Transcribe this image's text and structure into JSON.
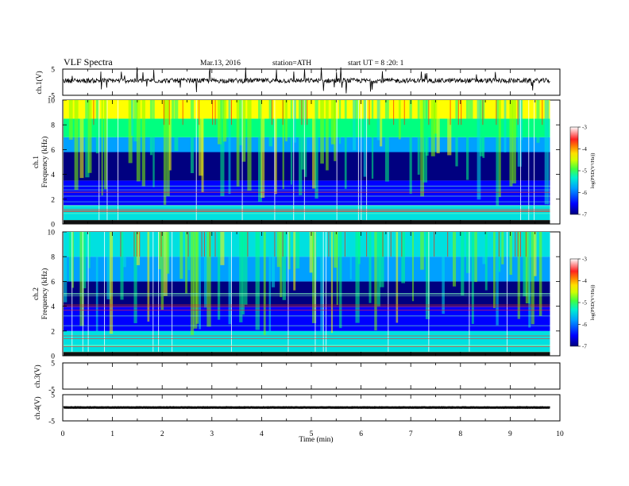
{
  "header": {
    "title": "VLF Spectra",
    "date": "Mar.13, 2016",
    "station": "station=ATH",
    "start": "start UT =   8 :20: 1"
  },
  "chart_data": {
    "type": "heatmap",
    "x_axis": {
      "label": "Time (min)",
      "range": [
        0,
        10
      ],
      "ticks": [
        "0",
        "1",
        "2",
        "3",
        "4",
        "5",
        "6",
        "7",
        "8",
        "9",
        "10"
      ]
    },
    "panels": [
      {
        "kind": "waveform",
        "ylabel": "ch.1(V)",
        "ylim": [
          -5,
          5
        ],
        "yticks": [
          "5",
          "-5"
        ],
        "series": {
          "name": "",
          "data_end_min": 9.8,
          "baseline": 0.6,
          "noise_amp": 0.9
        }
      },
      {
        "kind": "spectrogram",
        "ylabel_lines": [
          "ch.1",
          "Frequency (kHz)"
        ],
        "ylim": [
          0,
          10
        ],
        "yticks": [
          "0",
          "2",
          "4",
          "6",
          "8",
          "10"
        ],
        "data_end_min": 9.8,
        "bands_khz": [
          {
            "from": 0.0,
            "to": 1.5,
            "logpsd": -5.6
          },
          {
            "from": 1.5,
            "to": 3.5,
            "logpsd": -6.5
          },
          {
            "from": 3.5,
            "to": 5.8,
            "logpsd": -6.85
          },
          {
            "from": 5.8,
            "to": 7.0,
            "logpsd": -5.7
          },
          {
            "from": 7.0,
            "to": 8.5,
            "logpsd": -4.8
          },
          {
            "from": 8.5,
            "to": 10.0,
            "logpsd": -4.2
          }
        ],
        "colorbar": {
          "label": "log(PSD(V²/Hz))",
          "range": [
            -7,
            -3
          ],
          "ticks": [
            "-3",
            "-4",
            "-5",
            "-6",
            "-7"
          ]
        }
      },
      {
        "kind": "spectrogram",
        "ylabel_lines": [
          "ch.2",
          "Frequency (kHz)"
        ],
        "ylim": [
          0,
          10
        ],
        "yticks": [
          "0",
          "2",
          "4",
          "6",
          "8",
          "10"
        ],
        "data_end_min": 9.8,
        "bands_khz": [
          {
            "from": 0.0,
            "to": 2.0,
            "logpsd": -5.5
          },
          {
            "from": 2.0,
            "to": 4.0,
            "logpsd": -6.5
          },
          {
            "from": 4.0,
            "to": 6.0,
            "logpsd": -6.7
          },
          {
            "from": 6.0,
            "to": 8.0,
            "logpsd": -5.9
          },
          {
            "from": 8.0,
            "to": 10.0,
            "logpsd": -5.3
          }
        ],
        "colorbar": {
          "label": "log(PSD(V²/Hz))",
          "range": [
            -7,
            -3
          ],
          "ticks": [
            "-3",
            "-4",
            "-5",
            "-6",
            "-7"
          ]
        }
      },
      {
        "kind": "waveform",
        "ylabel": "ch.3(V)",
        "ylim": [
          -5,
          5
        ],
        "yticks": [
          "5",
          "-5"
        ],
        "series": null
      },
      {
        "kind": "waveform",
        "ylabel": "ch.4(V)",
        "ylim": [
          -5,
          5
        ],
        "yticks": [
          "5",
          "-5"
        ],
        "series": {
          "name": "",
          "data_end_min": 9.8,
          "baseline": 0.1,
          "noise_amp": 0.05
        }
      }
    ],
    "colormap": [
      "#000080",
      "#0000ff",
      "#00a0ff",
      "#00e0e0",
      "#00ff80",
      "#80ff00",
      "#ffff00",
      "#ffa000",
      "#ff0000",
      "#ffffff"
    ]
  }
}
